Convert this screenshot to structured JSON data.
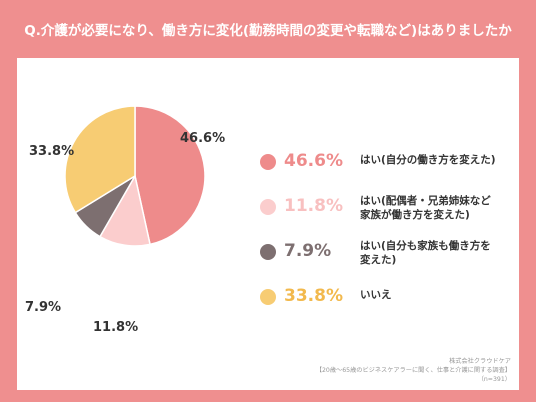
{
  "title": "Q.介護が必要になり、働き方に変化(勤務時間の変更や転職など)はありましたか",
  "chart_data": {
    "type": "pie",
    "slices": [
      {
        "label": "はい(自分の働き方を変えた)",
        "value": 46.6,
        "display": "46.6%",
        "color": "#ee8b8b"
      },
      {
        "label": "はい(配偶者・兄弟姉妹など家族が働き方を変えた)",
        "value": 11.8,
        "display": "11.8%",
        "color": "#fbcdcd"
      },
      {
        "label": "はい(自分も家族も働き方を変えた)",
        "value": 7.9,
        "display": "7.9%",
        "color": "#7d6f70"
      },
      {
        "label": "いいえ",
        "value": 33.8,
        "display": "33.8%",
        "color": "#f7cc73"
      }
    ]
  },
  "legend": [
    {
      "pct": "46.6%",
      "line1": "はい(自分の働き方を変えた)",
      "line2": ""
    },
    {
      "pct": "11.8%",
      "line1": "はい(配偶者・兄弟姉妹など",
      "line2": "家族が働き方を変えた)"
    },
    {
      "pct": "7.9%",
      "line1": "はい(自分も家族も働き方を",
      "line2": "変えた)"
    },
    {
      "pct": "33.8%",
      "line1": "いいえ",
      "line2": ""
    }
  ],
  "source": {
    "company": "株式会社クラウドケア",
    "survey": "【20歳〜65歳のビジネスケアラーに聞く、仕事と介護に関する調査】",
    "n": "（n=391）"
  }
}
